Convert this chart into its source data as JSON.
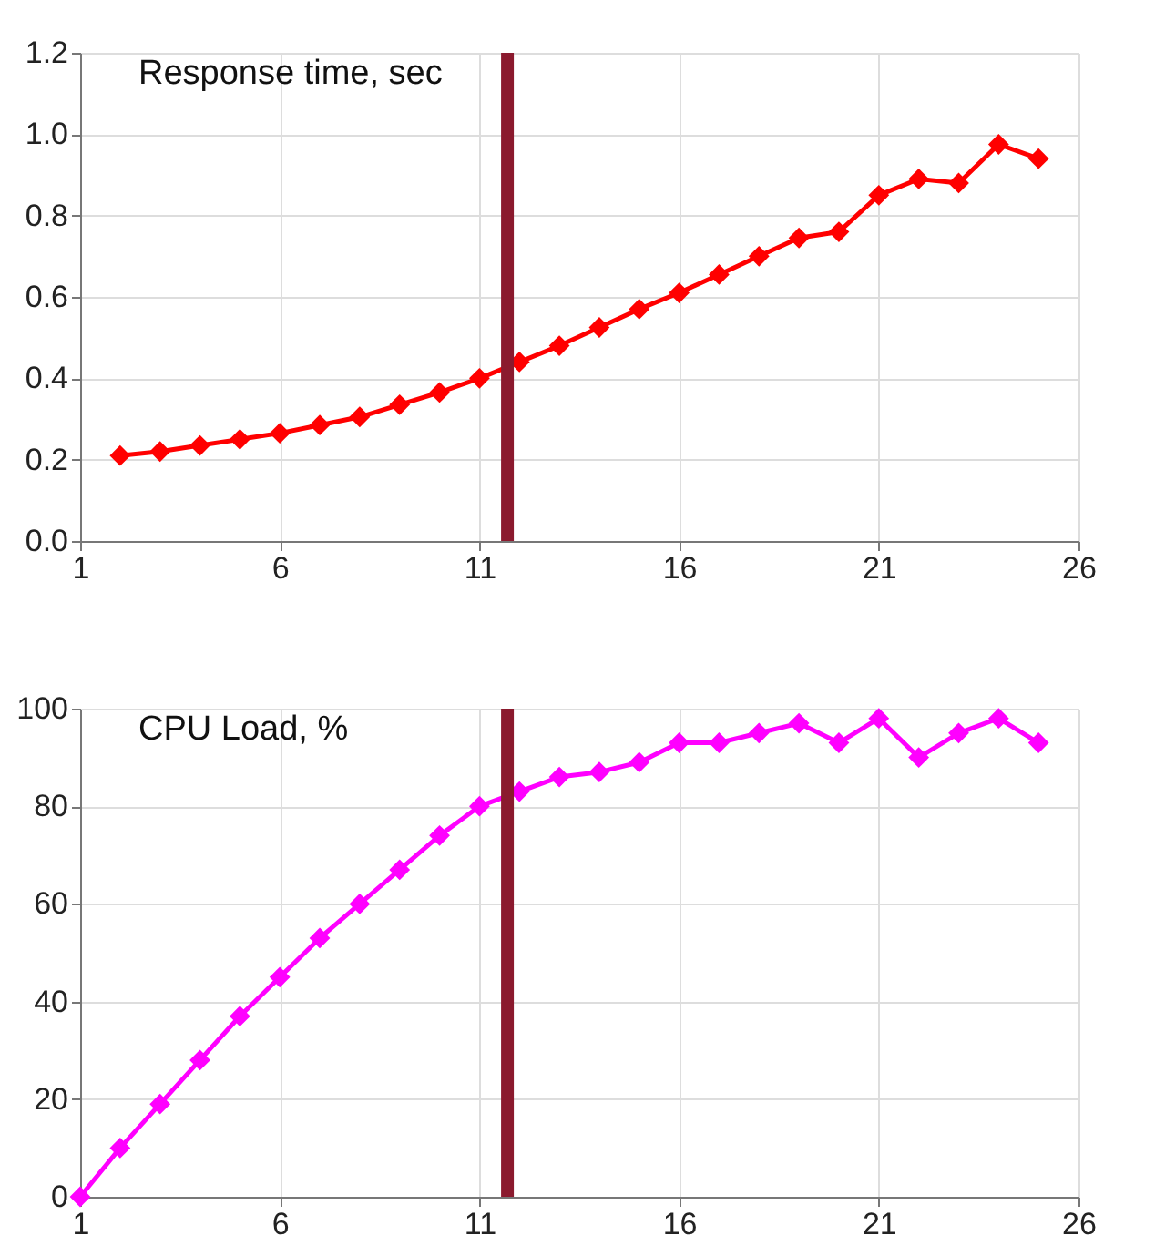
{
  "chart_data": [
    {
      "type": "line",
      "title": "Response time, sec",
      "x": [
        2,
        3,
        4,
        5,
        6,
        7,
        8,
        9,
        10,
        11,
        12,
        13,
        14,
        15,
        16,
        17,
        18,
        19,
        20,
        21,
        22,
        23,
        24,
        25
      ],
      "series": [
        {
          "color": "#ff0000",
          "values": [
            0.21,
            0.22,
            0.235,
            0.25,
            0.265,
            0.285,
            0.305,
            0.335,
            0.365,
            0.4,
            0.44,
            0.48,
            0.525,
            0.57,
            0.61,
            0.655,
            0.7,
            0.745,
            0.76,
            0.85,
            0.89,
            0.88,
            0.975,
            0.94
          ]
        }
      ],
      "xlim": [
        1,
        26
      ],
      "xticks": [
        1,
        6,
        11,
        16,
        21,
        26
      ],
      "ylim": [
        0,
        1.2
      ],
      "yticks": [
        {
          "value": 0,
          "label": "0.0"
        },
        {
          "value": 0.2,
          "label": "0.2"
        },
        {
          "value": 0.4,
          "label": "0.4"
        },
        {
          "value": 0.6,
          "label": "0.6"
        },
        {
          "value": 0.8,
          "label": "0.8"
        },
        {
          "value": 1,
          "label": "1.0"
        },
        {
          "value": 1.2,
          "label": "1.2"
        }
      ],
      "grid": true,
      "marker": "diamond",
      "line_style": "solid",
      "ref_lines": [
        {
          "axis": "x",
          "value": 11.7,
          "color": "#8b1a2e"
        }
      ]
    },
    {
      "type": "line",
      "title": "CPU Load, %",
      "x": [
        1,
        2,
        3,
        4,
        5,
        6,
        7,
        8,
        9,
        10,
        11,
        12,
        13,
        14,
        15,
        16,
        17,
        18,
        19,
        20,
        21,
        22,
        23,
        24,
        25
      ],
      "series": [
        {
          "color": "#ff00ff",
          "values": [
            0,
            10,
            19,
            28,
            37,
            45,
            53,
            60,
            67,
            74,
            80,
            83,
            86,
            87,
            89,
            93,
            93,
            95,
            97,
            93,
            98,
            90,
            95,
            98,
            93
          ]
        }
      ],
      "xlim": [
        1,
        26
      ],
      "xticks": [
        1,
        6,
        11,
        16,
        21,
        26
      ],
      "ylim": [
        0,
        100
      ],
      "yticks": [
        0,
        20,
        40,
        60,
        80,
        100
      ],
      "grid": true,
      "marker": "diamond",
      "line_style": "solid",
      "ref_lines": [
        {
          "axis": "x",
          "value": 11.7,
          "color": "#8b1a2e"
        }
      ]
    }
  ]
}
